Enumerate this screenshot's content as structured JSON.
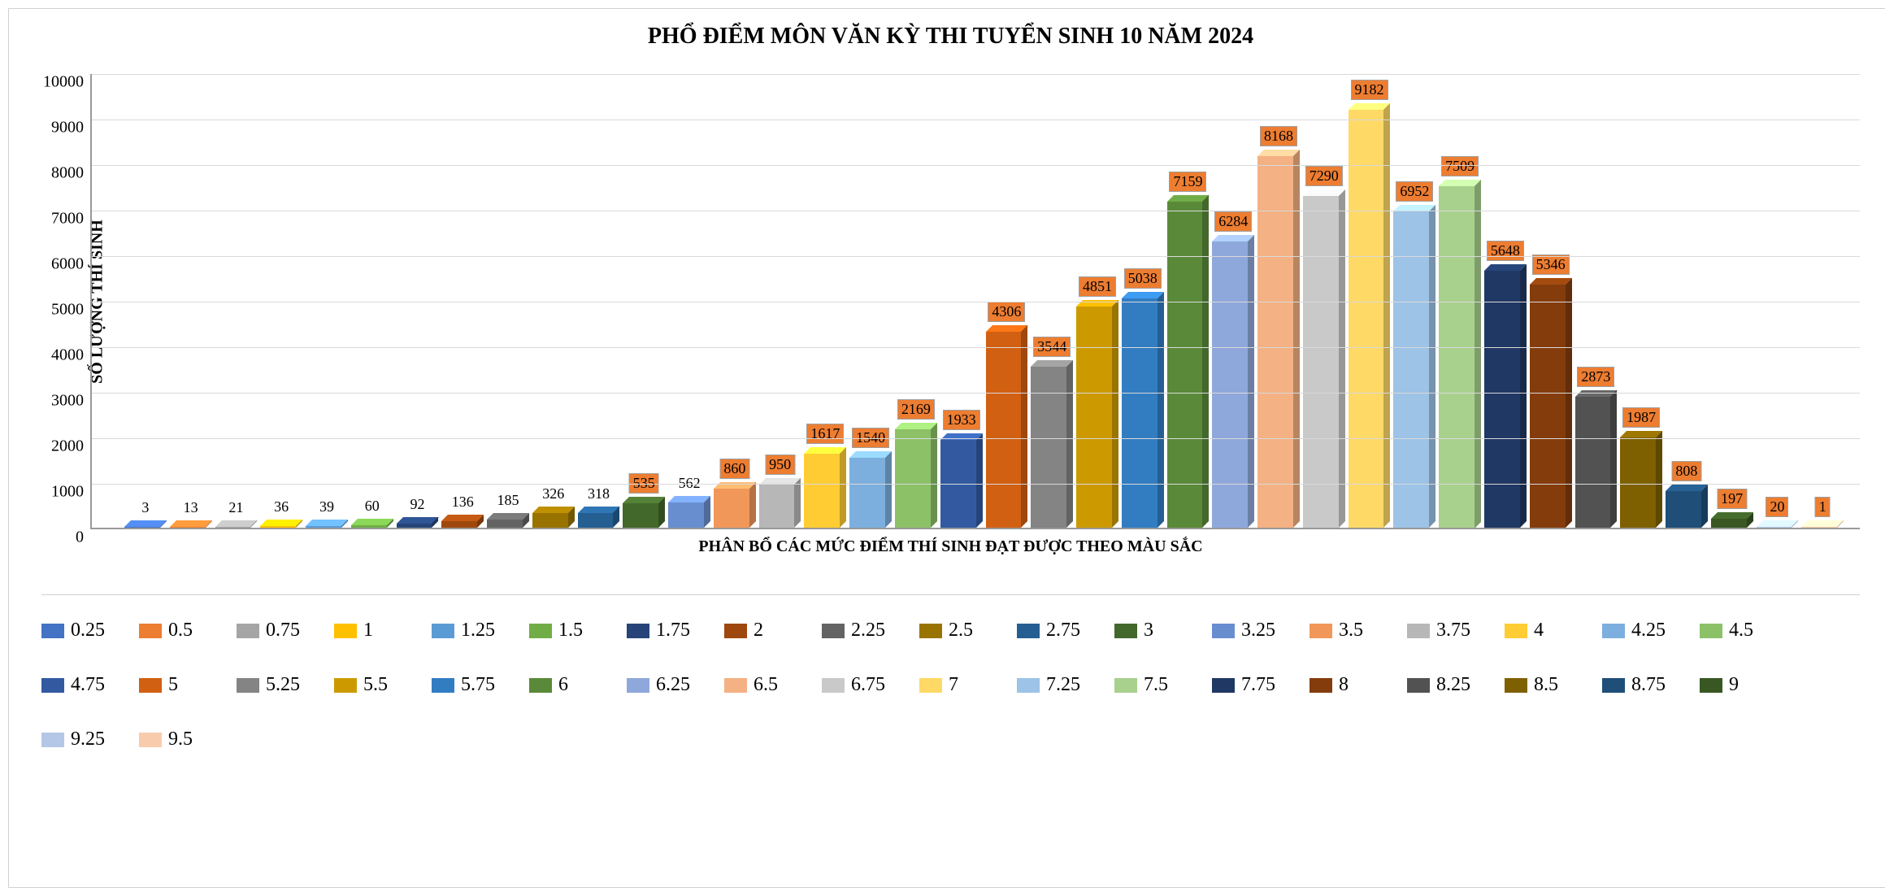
{
  "chart": {
    "type": "bar-3d",
    "title": "PHỔ ĐIỂM MÔN VĂN KỲ THI TUYỂN SINH 10 NĂM 2024",
    "title_fontsize": 28,
    "title_fontweight": "bold",
    "ylabel": "SỐ LƯỢNG THÍ SINH",
    "xlabel": "PHÂN BỔ CÁC MỨC ĐIỂM THÍ SINH ĐẠT ĐƯỢC THEO MÀU SẮC",
    "axis_label_fontsize": 20,
    "axis_label_fontweight": "bold",
    "ylim": [
      0,
      10000
    ],
    "ytick_step": 1000,
    "yticks": [
      0,
      1000,
      2000,
      3000,
      4000,
      5000,
      6000,
      7000,
      8000,
      9000,
      10000
    ],
    "grid_color": "#d9d9d9",
    "axis_color": "#999999",
    "background_color": "#ffffff",
    "data_label_fontsize": 18,
    "data_label_box_color": "#ed7d31",
    "data_label_box_border": "#a0a0a0",
    "depth_offset": 8,
    "bar_gap": 4,
    "series": [
      {
        "label": "0.25",
        "value": 3,
        "color": "#4472c4",
        "boxed": false
      },
      {
        "label": "0.5",
        "value": 13,
        "color": "#ed7d31",
        "boxed": false
      },
      {
        "label": "0.75",
        "value": 21,
        "color": "#a5a5a5",
        "boxed": false
      },
      {
        "label": "1",
        "value": 36,
        "color": "#ffc000",
        "boxed": false
      },
      {
        "label": "1.25",
        "value": 39,
        "color": "#5b9bd5",
        "boxed": false
      },
      {
        "label": "1.5",
        "value": 60,
        "color": "#70ad47",
        "boxed": false
      },
      {
        "label": "1.75",
        "value": 92,
        "color": "#264478",
        "boxed": false
      },
      {
        "label": "2",
        "value": 136,
        "color": "#9e480e",
        "boxed": false
      },
      {
        "label": "2.25",
        "value": 185,
        "color": "#636363",
        "boxed": false
      },
      {
        "label": "2.5",
        "value": 326,
        "color": "#997300",
        "boxed": false
      },
      {
        "label": "2.75",
        "value": 318,
        "color": "#255e91",
        "boxed": false
      },
      {
        "label": "3",
        "value": 535,
        "color": "#43682b",
        "boxed": true
      },
      {
        "label": "3.25",
        "value": 562,
        "color": "#698ed0",
        "boxed": false
      },
      {
        "label": "3.5",
        "value": 860,
        "color": "#f1975a",
        "boxed": true
      },
      {
        "label": "3.75",
        "value": 950,
        "color": "#b7b7b7",
        "boxed": true
      },
      {
        "label": "4",
        "value": 1617,
        "color": "#ffcd33",
        "boxed": true
      },
      {
        "label": "4.25",
        "value": 1540,
        "color": "#7cafdd",
        "boxed": true
      },
      {
        "label": "4.5",
        "value": 2169,
        "color": "#8cc168",
        "boxed": true
      },
      {
        "label": "4.75",
        "value": 1933,
        "color": "#335aa1",
        "boxed": true
      },
      {
        "label": "5",
        "value": 4306,
        "color": "#d26012",
        "boxed": true
      },
      {
        "label": "5.25",
        "value": 3544,
        "color": "#848484",
        "boxed": true
      },
      {
        "label": "5.5",
        "value": 4851,
        "color": "#cc9a00",
        "boxed": true
      },
      {
        "label": "5.75",
        "value": 5038,
        "color": "#327dc2",
        "boxed": true
      },
      {
        "label": "6",
        "value": 7159,
        "color": "#5a8a39",
        "boxed": true
      },
      {
        "label": "6.25",
        "value": 6284,
        "color": "#8fa8db",
        "boxed": true
      },
      {
        "label": "6.5",
        "value": 8168,
        "color": "#f4b183",
        "boxed": true
      },
      {
        "label": "6.75",
        "value": 7290,
        "color": "#c9c9c9",
        "boxed": true
      },
      {
        "label": "7",
        "value": 9182,
        "color": "#ffd966",
        "boxed": true
      },
      {
        "label": "7.25",
        "value": 6952,
        "color": "#9dc3e6",
        "boxed": true
      },
      {
        "label": "7.5",
        "value": 7509,
        "color": "#a9d18e",
        "boxed": true
      },
      {
        "label": "7.75",
        "value": 5648,
        "color": "#203864",
        "boxed": true
      },
      {
        "label": "8",
        "value": 5346,
        "color": "#843c0c",
        "boxed": true
      },
      {
        "label": "8.25",
        "value": 2873,
        "color": "#525252",
        "boxed": true
      },
      {
        "label": "8.5",
        "value": 1987,
        "color": "#7f6000",
        "boxed": true
      },
      {
        "label": "8.75",
        "value": 808,
        "color": "#1f4e79",
        "boxed": true
      },
      {
        "label": "9",
        "value": 197,
        "color": "#385723",
        "boxed": true
      },
      {
        "label": "9.25",
        "value": 20,
        "color": "#b4c7e7",
        "boxed": true
      },
      {
        "label": "9.5",
        "value": 1,
        "color": "#f8cbad",
        "boxed": true
      }
    ],
    "legend_fontsize": 24,
    "legend_item_width": 120,
    "legend_swatch_w": 28,
    "legend_swatch_h": 18
  }
}
